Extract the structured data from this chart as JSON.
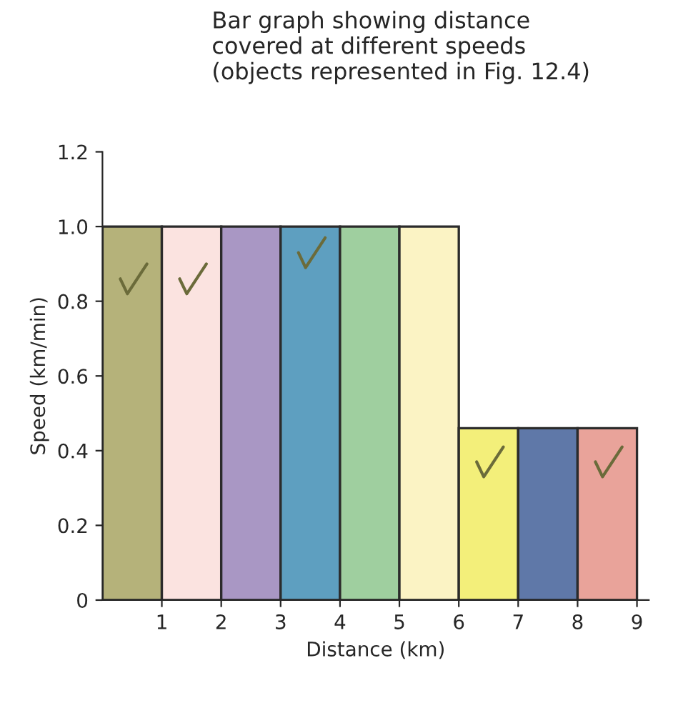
{
  "chart_data": {
    "type": "bar",
    "title": "Bar graph showing distance\ncovered at different speeds\n(objects represented in Fig. 12.4)",
    "xlabel": "Distance (km)",
    "ylabel": "Speed (km/min)",
    "x": [
      0.5,
      1.5,
      2.5,
      3.5,
      4.5,
      5.5,
      6.5,
      7.5,
      8.5
    ],
    "values": [
      1.0,
      1.0,
      1.0,
      1.0,
      1.0,
      1.0,
      0.46,
      0.46,
      0.46
    ],
    "colors": [
      "#b5b27a",
      "#fbe3e0",
      "#a997c4",
      "#5e9fc0",
      "#9fcf9f",
      "#fbf3c4",
      "#f3ef7a",
      "#5f78a8",
      "#e9a39a"
    ],
    "xlim": [
      0,
      9.2
    ],
    "xticks": [
      1,
      2,
      3,
      4,
      5,
      6,
      7,
      8,
      9
    ],
    "ylim": [
      0,
      1.2
    ],
    "yticks": [
      0,
      0.2,
      0.4,
      0.6,
      0.8,
      {
        "value": 1.0,
        "label": "1.0"
      },
      {
        "value": 1.2,
        "label": "1.2"
      }
    ],
    "grid": false
  }
}
